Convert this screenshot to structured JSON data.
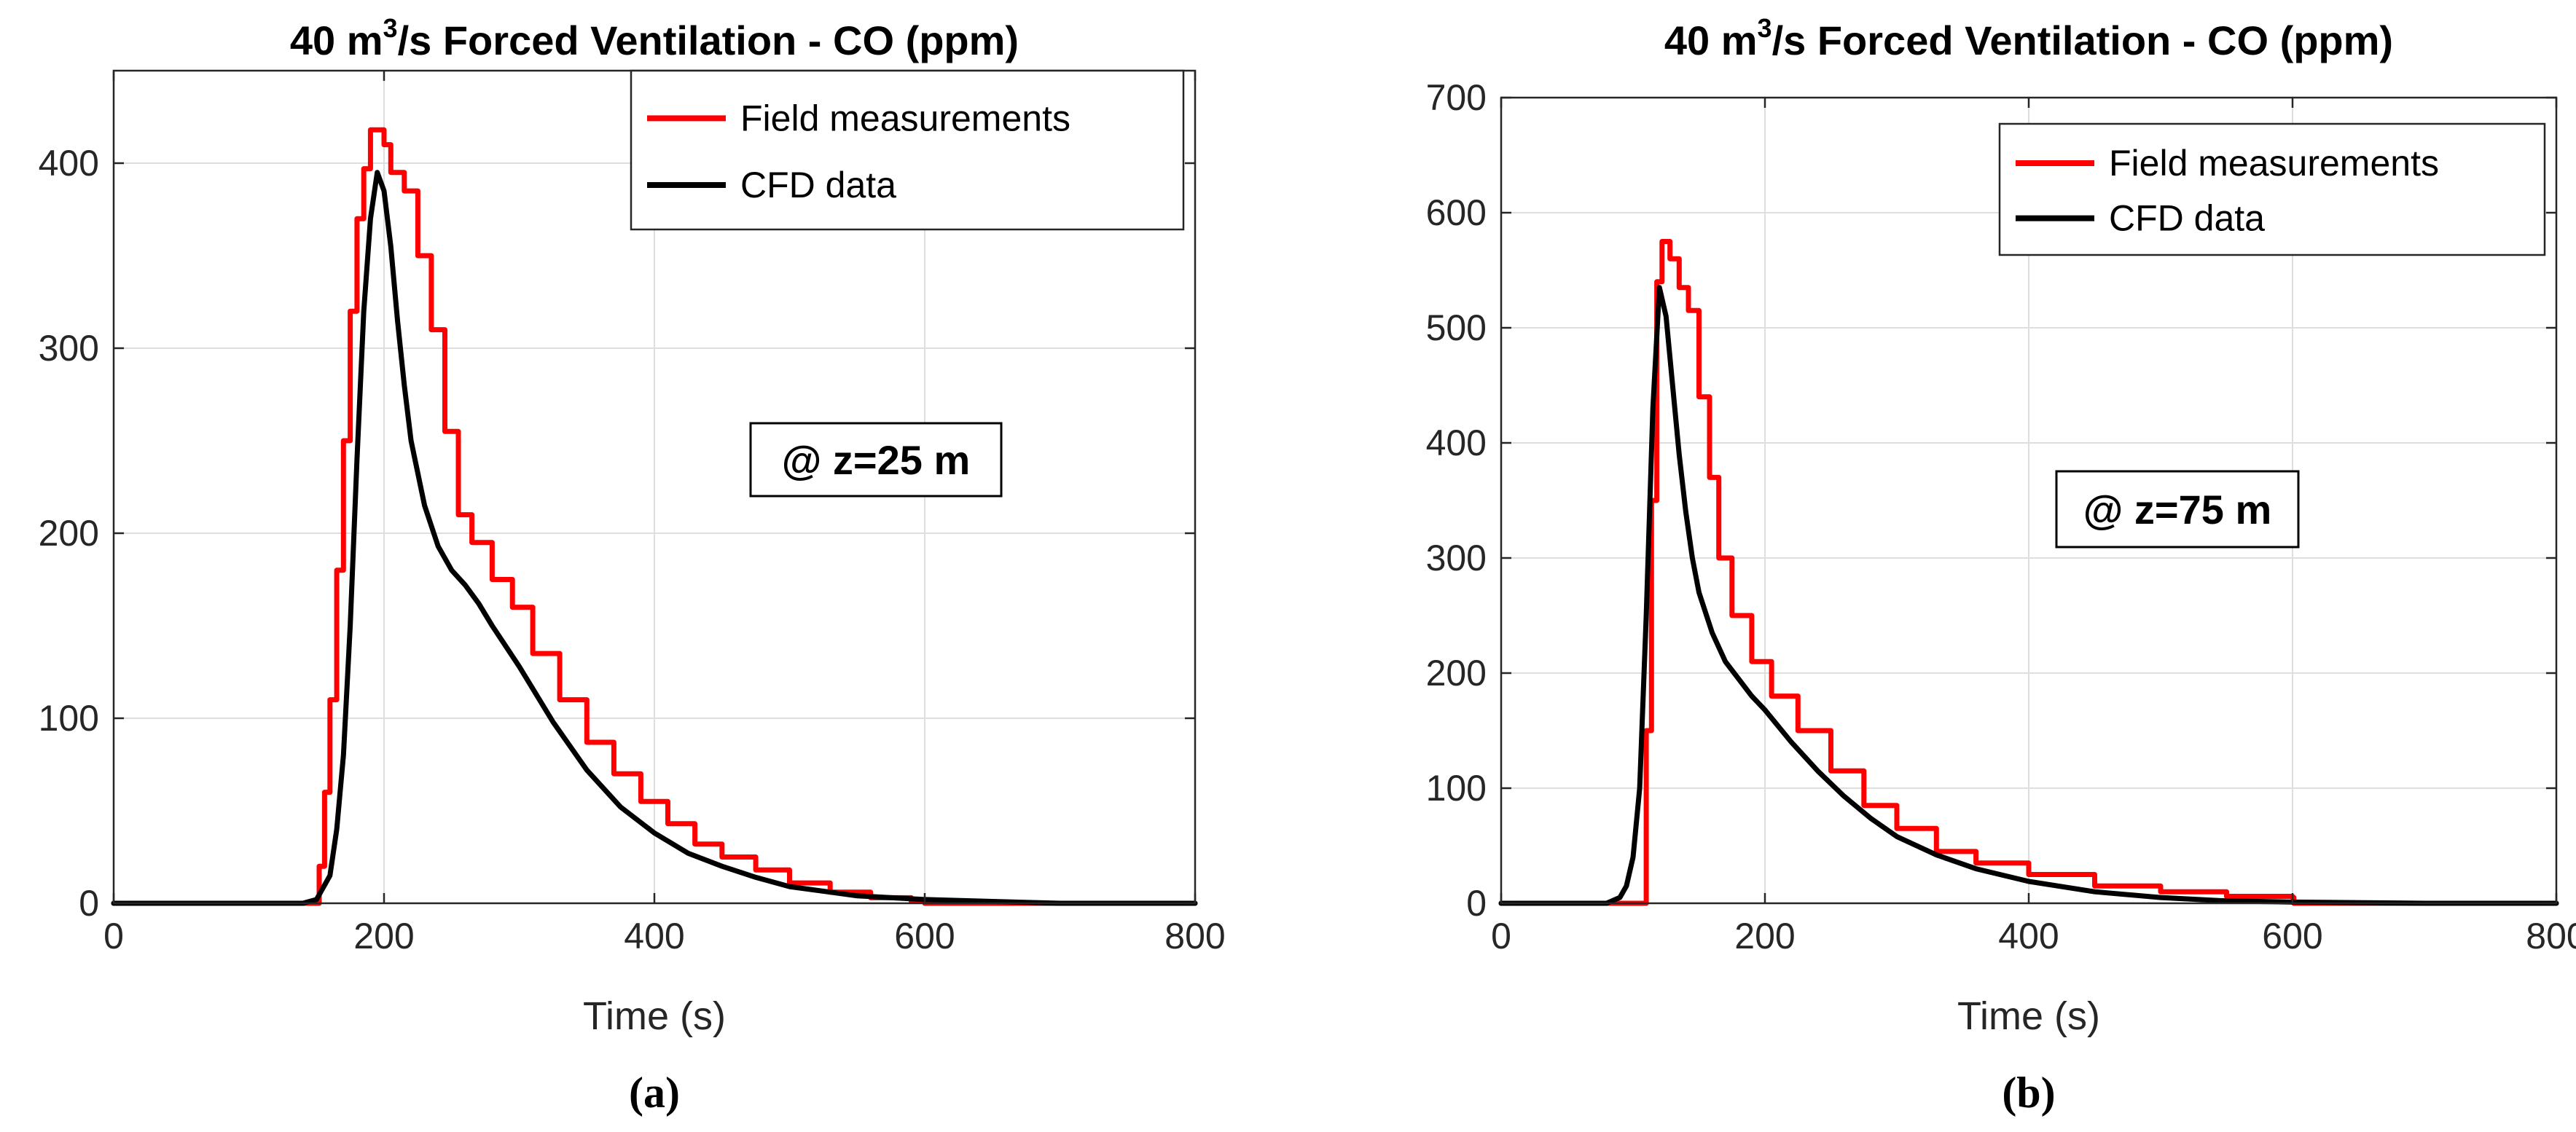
{
  "figure": {
    "panel_labels": [
      "(a)",
      "(b)"
    ]
  },
  "colors": {
    "field": "#ff0000",
    "cfd": "#000000",
    "grid": "#dedede",
    "axis": "#262626"
  },
  "chart_data": [
    {
      "type": "line",
      "title_prefix": "40 m",
      "title_sup": "3",
      "title_suffix": "/s Forced Ventilation - CO (ppm)",
      "xlabel": "Time (s)",
      "ylabel": "",
      "xlim": [
        0,
        800
      ],
      "ylim": [
        0,
        450
      ],
      "xticks": [
        0,
        200,
        400,
        600,
        800
      ],
      "yticks": [
        0,
        100,
        200,
        300,
        400
      ],
      "grid": true,
      "legend_position": "top-right",
      "annotation": "@ z=25 m",
      "panel_label": "(a)",
      "series": [
        {
          "name": "Field measurements",
          "color": "#ff0000",
          "step": true,
          "x": [
            0,
            148,
            152,
            156,
            160,
            165,
            170,
            175,
            180,
            185,
            190,
            200,
            205,
            215,
            225,
            235,
            245,
            255,
            265,
            280,
            295,
            310,
            330,
            350,
            370,
            390,
            410,
            430,
            450,
            475,
            500,
            530,
            560,
            590,
            600,
            650,
            700,
            800
          ],
          "y": [
            0,
            0,
            20,
            60,
            110,
            180,
            250,
            320,
            370,
            397,
            418,
            410,
            395,
            385,
            350,
            310,
            255,
            210,
            195,
            175,
            160,
            135,
            110,
            87,
            70,
            55,
            43,
            32,
            25,
            18,
            11,
            6,
            3,
            1,
            0,
            0,
            0,
            0
          ]
        },
        {
          "name": "CFD data",
          "color": "#000000",
          "step": false,
          "x": [
            0,
            140,
            150,
            160,
            165,
            170,
            175,
            180,
            185,
            190,
            195,
            200,
            205,
            210,
            215,
            220,
            230,
            240,
            250,
            260,
            270,
            280,
            300,
            325,
            350,
            375,
            400,
            425,
            450,
            475,
            500,
            550,
            600,
            650,
            700,
            800
          ],
          "y": [
            0,
            0,
            2,
            15,
            40,
            80,
            150,
            240,
            320,
            370,
            395,
            385,
            355,
            315,
            280,
            250,
            215,
            193,
            180,
            172,
            162,
            150,
            128,
            98,
            72,
            52,
            38,
            27,
            20,
            14,
            9,
            4,
            2,
            1,
            0,
            0
          ]
        }
      ]
    },
    {
      "type": "line",
      "title_prefix": "40 m",
      "title_sup": "3",
      "title_suffix": "/s Forced Ventilation - CO (ppm)",
      "xlabel": "Time (s)",
      "ylabel": "",
      "xlim": [
        0,
        800
      ],
      "ylim": [
        0,
        700
      ],
      "xticks": [
        0,
        200,
        400,
        600,
        800
      ],
      "yticks": [
        0,
        100,
        200,
        300,
        400,
        500,
        600,
        700
      ],
      "grid": true,
      "legend_position": "top-right",
      "annotation": "@ z=75 m",
      "panel_label": "(b)",
      "series": [
        {
          "name": "Field measurements",
          "color": "#ff0000",
          "step": true,
          "x": [
            0,
            105,
            110,
            114,
            118,
            122,
            128,
            135,
            142,
            150,
            158,
            165,
            175,
            190,
            205,
            225,
            250,
            275,
            300,
            330,
            360,
            400,
            450,
            500,
            550,
            600,
            601,
            700,
            800
          ],
          "y": [
            0,
            0,
            150,
            350,
            540,
            575,
            560,
            535,
            515,
            440,
            370,
            300,
            250,
            210,
            180,
            150,
            115,
            85,
            65,
            45,
            35,
            25,
            15,
            10,
            6,
            5,
            0,
            0,
            0
          ]
        },
        {
          "name": "CFD data",
          "color": "#000000",
          "step": false,
          "x": [
            0,
            80,
            90,
            95,
            100,
            105,
            110,
            115,
            120,
            125,
            130,
            135,
            140,
            145,
            150,
            160,
            170,
            180,
            190,
            200,
            220,
            240,
            260,
            280,
            300,
            330,
            360,
            400,
            450,
            500,
            550,
            600,
            700,
            800
          ],
          "y": [
            0,
            0,
            5,
            15,
            40,
            100,
            250,
            430,
            535,
            510,
            450,
            390,
            340,
            300,
            270,
            235,
            210,
            195,
            180,
            168,
            140,
            115,
            93,
            74,
            58,
            42,
            30,
            19,
            10,
            5,
            2,
            1,
            0,
            0
          ]
        }
      ]
    }
  ]
}
